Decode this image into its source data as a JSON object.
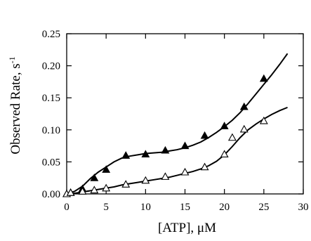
{
  "chart_data": {
    "type": "scatter",
    "xlabel": "[ATP], μM",
    "ylabel_base": "Observed Rate, s",
    "ylabel_exp": "-1",
    "xlim": [
      0,
      30
    ],
    "ylim": [
      0,
      0.25
    ],
    "x_ticks": [
      0,
      5,
      10,
      15,
      20,
      25,
      30
    ],
    "x_tick_labels": [
      "0",
      "5",
      "10",
      "15",
      "20",
      "25",
      "30"
    ],
    "y_ticks": [
      0,
      0.05,
      0.1,
      0.15,
      0.2,
      0.25
    ],
    "y_tick_labels": [
      "0.00",
      "0.05",
      "0.10",
      "0.15",
      "0.20",
      "0.25"
    ],
    "grid": false,
    "series": [
      {
        "marker": "filled-triangle",
        "x": [
          0,
          0.5,
          2,
          3.5,
          5,
          7.5,
          10,
          12.5,
          15,
          17.5,
          20,
          22.5,
          25
        ],
        "y": [
          0.0,
          0.002,
          0.008,
          0.025,
          0.038,
          0.06,
          0.062,
          0.068,
          0.075,
          0.091,
          0.106,
          0.136,
          0.18
        ],
        "fit_x": [
          0,
          1,
          2,
          3,
          4,
          5,
          6,
          7,
          8,
          9,
          10,
          11,
          12,
          13,
          14,
          15,
          16,
          17,
          18,
          19,
          20,
          21,
          22,
          23,
          24,
          25,
          26,
          27,
          28
        ],
        "fit_y": [
          0.0,
          0.004,
          0.012,
          0.024,
          0.034,
          0.042,
          0.05,
          0.056,
          0.059,
          0.061,
          0.063,
          0.064,
          0.065,
          0.067,
          0.069,
          0.072,
          0.076,
          0.081,
          0.088,
          0.096,
          0.105,
          0.115,
          0.127,
          0.141,
          0.156,
          0.171,
          0.186,
          0.202,
          0.219
        ]
      },
      {
        "marker": "open-triangle",
        "x": [
          0,
          0.5,
          2,
          3.5,
          5,
          7.5,
          10,
          12.5,
          15,
          17.5,
          20,
          21,
          22.5,
          25
        ],
        "y": [
          0.0,
          0.002,
          0.004,
          0.006,
          0.009,
          0.015,
          0.021,
          0.027,
          0.034,
          0.042,
          0.062,
          0.088,
          0.101,
          0.114
        ],
        "fit_x": [
          0,
          1,
          2,
          3,
          4,
          5,
          6,
          7,
          8,
          9,
          10,
          11,
          12,
          13,
          14,
          15,
          16,
          17,
          18,
          19,
          20,
          21,
          22,
          23,
          24,
          25,
          26,
          27,
          28
        ],
        "fit_y": [
          0.0,
          0.001,
          0.003,
          0.005,
          0.007,
          0.009,
          0.011,
          0.014,
          0.016,
          0.018,
          0.02,
          0.022,
          0.024,
          0.026,
          0.029,
          0.032,
          0.035,
          0.039,
          0.044,
          0.051,
          0.061,
          0.074,
          0.088,
          0.1,
          0.109,
          0.117,
          0.124,
          0.13,
          0.135
        ]
      }
    ]
  }
}
